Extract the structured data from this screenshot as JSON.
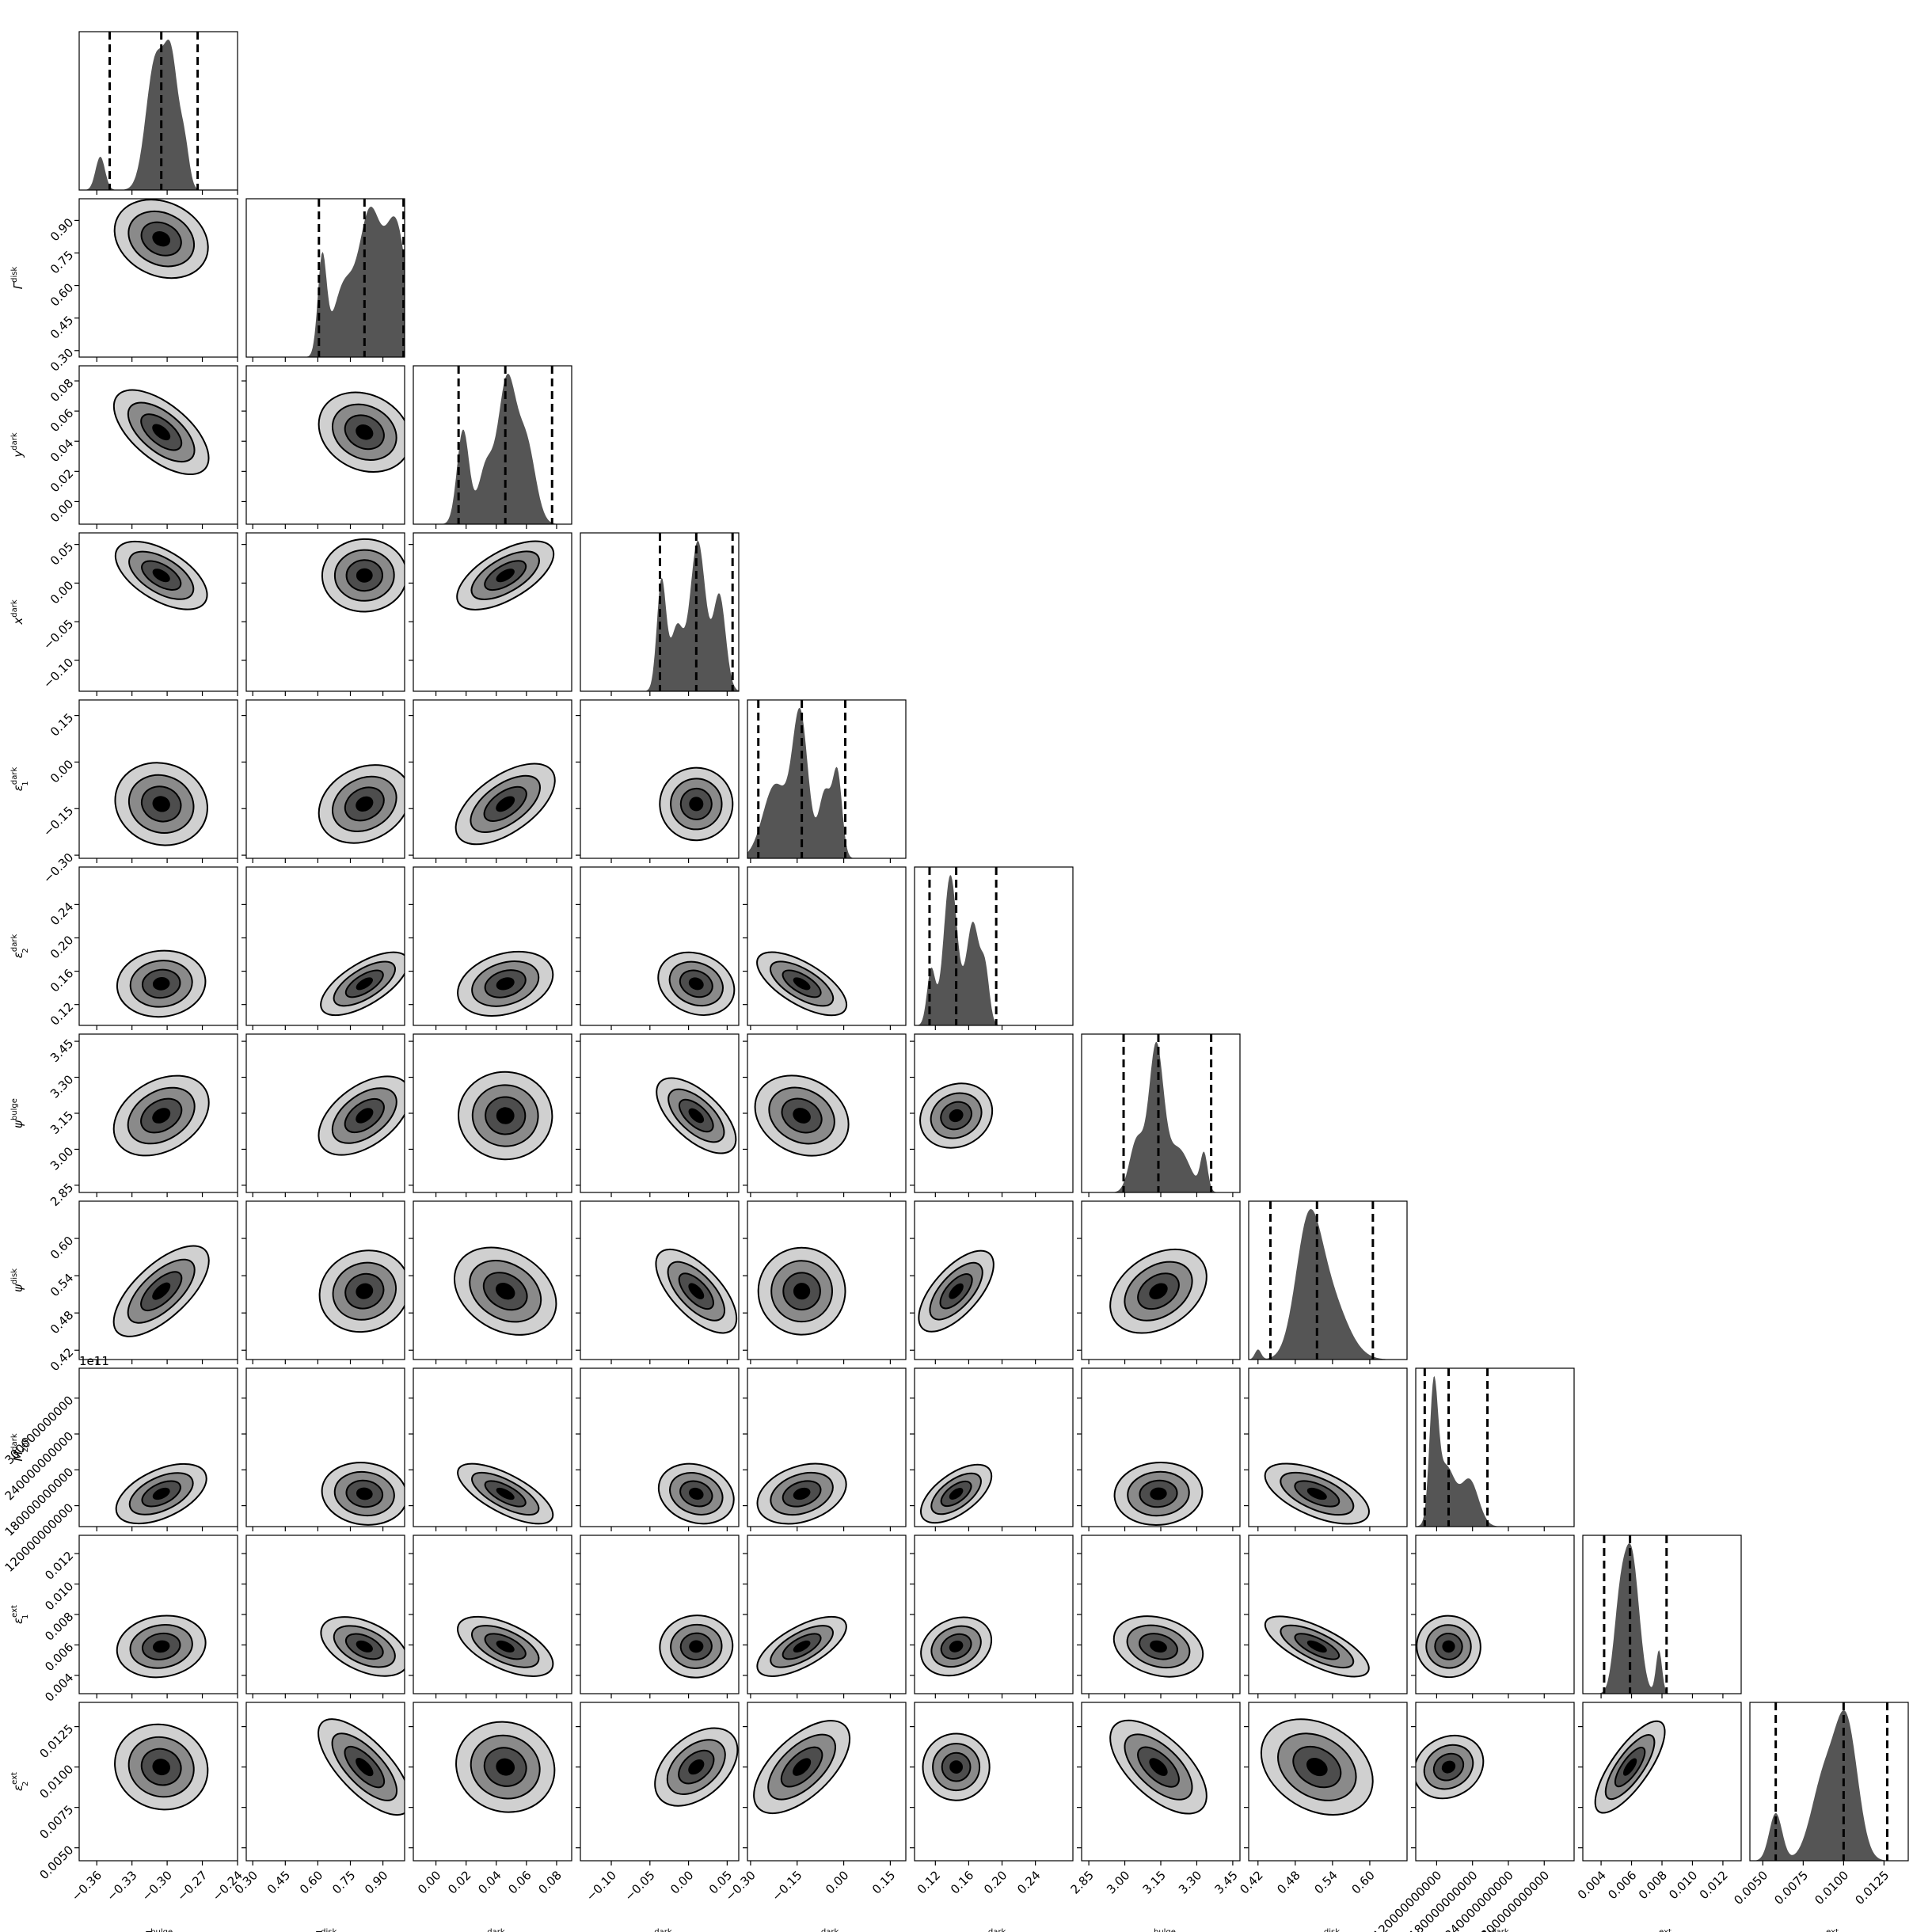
{
  "chart_data": {
    "type": "corner",
    "parameters": [
      {
        "id": "gamma_bulge",
        "symbol": "Γ",
        "sup": "bulge",
        "sub": "",
        "range": [
          -0.375,
          -0.24
        ],
        "ticks": [
          "−0.36",
          "−0.33",
          "−0.30",
          "−0.27",
          "−0.24"
        ],
        "tickvals": [
          -0.36,
          -0.33,
          -0.3,
          -0.27,
          -0.24
        ],
        "modes": [
          {
            "mu": -0.357,
            "sd": 0.004,
            "w": 0.22
          },
          {
            "mu": -0.31,
            "sd": 0.008,
            "w": 0.85
          },
          {
            "mu": -0.296,
            "sd": 0.006,
            "w": 0.75
          },
          {
            "mu": -0.285,
            "sd": 0.004,
            "w": 0.25
          }
        ],
        "quantiles": [
          -0.349,
          -0.305,
          -0.274
        ]
      },
      {
        "id": "gamma_disk",
        "symbol": "Γ",
        "sup": "disk",
        "sub": "",
        "range": [
          0.27,
          1.0
        ],
        "ticks": [
          "0.30",
          "0.45",
          "0.60",
          "0.75",
          "0.90"
        ],
        "tickvals": [
          0.3,
          0.45,
          0.6,
          0.75,
          0.9
        ],
        "modes": [
          {
            "mu": 0.62,
            "sd": 0.02,
            "w": 0.62
          },
          {
            "mu": 0.72,
            "sd": 0.05,
            "w": 0.45
          },
          {
            "mu": 0.84,
            "sd": 0.05,
            "w": 0.9
          },
          {
            "mu": 0.96,
            "sd": 0.05,
            "w": 0.85
          }
        ],
        "quantiles": [
          0.605,
          0.815,
          0.995
        ]
      },
      {
        "id": "y_dark",
        "symbol": "y",
        "sup": "dark",
        "sub": "",
        "range": [
          -0.015,
          0.09
        ],
        "ticks": [
          "0.00",
          "0.02",
          "0.04",
          "0.06",
          "0.08"
        ],
        "tickvals": [
          0.0,
          0.02,
          0.04,
          0.06,
          0.08
        ],
        "modes": [
          {
            "mu": 0.018,
            "sd": 0.004,
            "w": 0.6
          },
          {
            "mu": 0.033,
            "sd": 0.005,
            "w": 0.35
          },
          {
            "mu": 0.047,
            "sd": 0.006,
            "w": 0.9
          },
          {
            "mu": 0.06,
            "sd": 0.006,
            "w": 0.5
          }
        ],
        "quantiles": [
          0.015,
          0.046,
          0.077
        ]
      },
      {
        "id": "x_dark",
        "symbol": "x",
        "sup": "dark",
        "sub": "",
        "range": [
          -0.14,
          0.065
        ],
        "ticks": [
          "−0.10",
          "−0.05",
          "0.00",
          "0.05"
        ],
        "tickvals": [
          -0.1,
          -0.05,
          0.0,
          0.05
        ],
        "modes": [
          {
            "mu": -0.035,
            "sd": 0.006,
            "w": 0.7
          },
          {
            "mu": -0.015,
            "sd": 0.008,
            "w": 0.4
          },
          {
            "mu": 0.012,
            "sd": 0.01,
            "w": 0.95
          },
          {
            "mu": 0.04,
            "sd": 0.008,
            "w": 0.6
          }
        ],
        "quantiles": [
          -0.037,
          0.01,
          0.057
        ]
      },
      {
        "id": "eps1_dark",
        "symbol": "ε",
        "sup": "dark",
        "sub": "1",
        "range": [
          -0.31,
          0.2
        ],
        "ticks": [
          "−0.30",
          "−0.15",
          "0.00",
          "0.15"
        ],
        "tickvals": [
          -0.3,
          -0.15,
          0.0,
          0.15
        ],
        "modes": [
          {
            "mu": -0.22,
            "sd": 0.04,
            "w": 0.5
          },
          {
            "mu": -0.14,
            "sd": 0.025,
            "w": 0.95
          },
          {
            "mu": -0.06,
            "sd": 0.02,
            "w": 0.45
          },
          {
            "mu": -0.02,
            "sd": 0.015,
            "w": 0.55
          }
        ],
        "quantiles": [
          -0.275,
          -0.135,
          0.005
        ]
      },
      {
        "id": "eps2_dark",
        "symbol": "ε",
        "sup": "dark",
        "sub": "2",
        "range": [
          0.095,
          0.285
        ],
        "ticks": [
          "0.12",
          "0.16",
          "0.20",
          "0.24"
        ],
        "tickvals": [
          0.12,
          0.16,
          0.2,
          0.24
        ],
        "modes": [
          {
            "mu": 0.115,
            "sd": 0.005,
            "w": 0.35
          },
          {
            "mu": 0.138,
            "sd": 0.008,
            "w": 0.95
          },
          {
            "mu": 0.165,
            "sd": 0.008,
            "w": 0.65
          },
          {
            "mu": 0.18,
            "sd": 0.005,
            "w": 0.3
          }
        ],
        "quantiles": [
          0.113,
          0.145,
          0.193
        ]
      },
      {
        "id": "psi_bulge",
        "symbol": "ψ",
        "sup": "bulge",
        "sub": "",
        "range": [
          2.82,
          3.48
        ],
        "ticks": [
          "2.85",
          "3.00",
          "3.15",
          "3.30",
          "3.45"
        ],
        "tickvals": [
          2.85,
          3.0,
          3.15,
          3.3,
          3.45
        ],
        "modes": [
          {
            "mu": 3.05,
            "sd": 0.03,
            "w": 0.35
          },
          {
            "mu": 3.13,
            "sd": 0.03,
            "w": 0.95
          },
          {
            "mu": 3.22,
            "sd": 0.05,
            "w": 0.3
          },
          {
            "mu": 3.33,
            "sd": 0.015,
            "w": 0.25
          }
        ],
        "quantiles": [
          2.995,
          3.14,
          3.36
        ]
      },
      {
        "id": "psi_disk",
        "symbol": "ψ",
        "sup": "disk",
        "sub": "",
        "range": [
          0.405,
          0.66
        ],
        "ticks": [
          "0.42",
          "0.48",
          "0.54",
          "0.60"
        ],
        "tickvals": [
          0.42,
          0.48,
          0.54,
          0.6
        ],
        "modes": [
          {
            "mu": 0.42,
            "sd": 0.005,
            "w": 0.08
          },
          {
            "mu": 0.5,
            "sd": 0.02,
            "w": 0.85
          },
          {
            "mu": 0.53,
            "sd": 0.03,
            "w": 0.55
          }
        ],
        "quantiles": [
          0.44,
          0.515,
          0.605
        ]
      },
      {
        "id": "m200_dark",
        "symbol": "M",
        "sup": "dark",
        "sub": "200",
        "range": [
          0.85,
          3.5
        ],
        "ticks": [
          "120000000000",
          "180000000000",
          "240000000000",
          "300000000000"
        ],
        "tickvals": [
          1.2,
          1.8,
          2.4,
          3.0
        ],
        "modes": [
          {
            "mu": 1.15,
            "sd": 0.07,
            "w": 0.95
          },
          {
            "mu": 1.35,
            "sd": 0.15,
            "w": 0.45
          },
          {
            "mu": 1.75,
            "sd": 0.15,
            "w": 0.35
          }
        ],
        "quantiles": [
          1.0,
          1.4,
          2.05
        ]
      },
      {
        "id": "eps1_ext",
        "symbol": "ε",
        "sup": "ext",
        "sub": "1",
        "range": [
          0.0028,
          0.0132
        ],
        "ticks": [
          "0.004",
          "0.006",
          "0.008",
          "0.010",
          "0.012"
        ],
        "tickvals": [
          0.004,
          0.006,
          0.008,
          0.01,
          0.012
        ],
        "modes": [
          {
            "mu": 0.0052,
            "sd": 0.0004,
            "w": 0.5
          },
          {
            "mu": 0.006,
            "sd": 0.0005,
            "w": 0.95
          },
          {
            "mu": 0.0078,
            "sd": 0.0002,
            "w": 0.3
          }
        ],
        "quantiles": [
          0.0042,
          0.0059,
          0.0083
        ]
      },
      {
        "id": "eps2_ext",
        "symbol": "ε",
        "sup": "ext",
        "sub": "2",
        "range": [
          0.0042,
          0.014
        ],
        "ticks": [
          "0.0050",
          "0.0075",
          "0.0100",
          "0.0125"
        ],
        "tickvals": [
          0.005,
          0.0075,
          0.01,
          0.0125
        ],
        "modes": [
          {
            "mu": 0.0058,
            "sd": 0.0004,
            "w": 0.35
          },
          {
            "mu": 0.0088,
            "sd": 0.0008,
            "w": 0.6
          },
          {
            "mu": 0.0102,
            "sd": 0.0007,
            "w": 0.95
          }
        ],
        "quantiles": [
          0.0058,
          0.01,
          0.0127
        ]
      }
    ],
    "offset_text": {
      "row": 8,
      "text": "1e11"
    },
    "xlabels_bottom_row": true,
    "ylabels_first_column": true,
    "quantile_lines": "dashed",
    "contour_levels": 4
  }
}
